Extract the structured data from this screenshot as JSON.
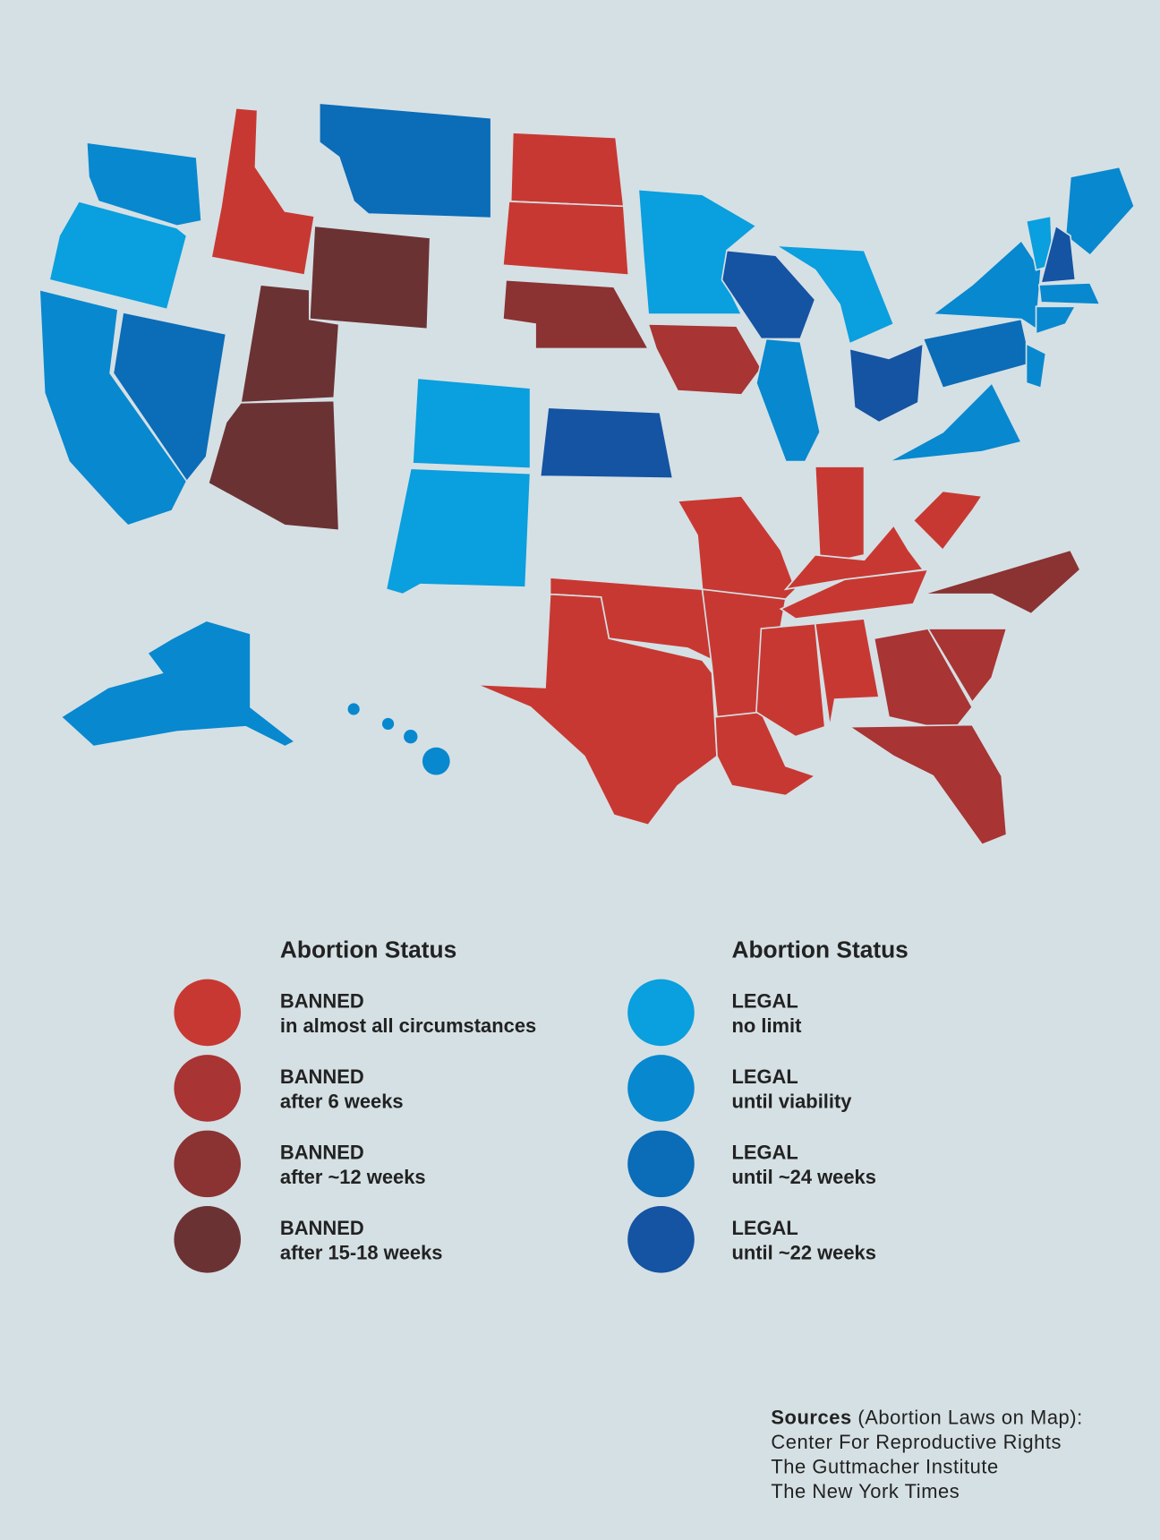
{
  "legend": [
    {
      "title": "Abortion Status",
      "items": [
        {
          "status": "BANNED",
          "detail": "in almost all circumstances",
          "color": "#c83832"
        },
        {
          "status": "BANNED",
          "detail": "after 6 weeks",
          "color": "#a83434"
        },
        {
          "status": "BANNED",
          "detail": "after ~12 weeks",
          "color": "#8b3232"
        },
        {
          "status": "BANNED",
          "detail": "after 15-18 weeks",
          "color": "#6b3234"
        }
      ]
    },
    {
      "title": "Abortion Status",
      "items": [
        {
          "status": "LEGAL",
          "detail": "no limit",
          "color": "#0a9fde"
        },
        {
          "status": "LEGAL",
          "detail": "until viability",
          "color": "#0888cf"
        },
        {
          "status": "LEGAL",
          "detail": "until ~24 weeks",
          "color": "#0b6cb8"
        },
        {
          "status": "LEGAL",
          "detail": "until ~22 weeks",
          "color": "#1553a3"
        }
      ]
    }
  ],
  "sources": {
    "heading": "Sources",
    "note": "(Abortion Laws on Map):",
    "lines": [
      "Center For Reproductive Rights",
      "The Guttmacher Institute",
      "The New York Times"
    ]
  }
}
